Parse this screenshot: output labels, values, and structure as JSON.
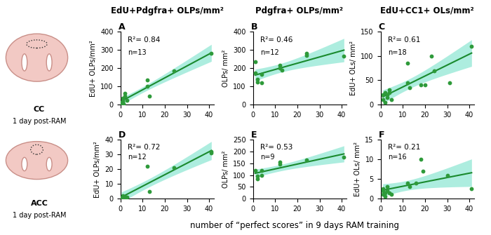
{
  "column_titles": [
    "EdU+Pdgfra+ OLPs/mm²",
    "Pdgfra+ OLPs/mm²",
    "EdU+CC1+ OLs/mm²"
  ],
  "row_labels": [
    [
      "CC",
      "1 day post-RAM"
    ],
    [
      "ACC",
      "1 day post-RAM"
    ]
  ],
  "xlabel": "number of “perfect scores” in 9 days RAM training",
  "chart_data": [
    {
      "type": "scatter",
      "title": "A",
      "ylabel": "EdU+ OLPs/mm²",
      "xlim": [
        0,
        42
      ],
      "xticks": [
        0,
        10,
        20,
        30,
        40
      ],
      "ylim": [
        0,
        400
      ],
      "yticks": [
        0,
        100,
        200,
        300,
        400
      ],
      "annotations": [
        "R²= 0.84",
        "n=13"
      ],
      "series": [
        {
          "color": "#2e9a3a",
          "x": [
            0.5,
            1,
            1,
            1.5,
            2,
            2,
            3,
            12,
            12,
            13,
            24,
            41,
            0.5
          ],
          "values": [
            10,
            20,
            35,
            5,
            45,
            60,
            25,
            100,
            135,
            45,
            185,
            280,
            0
          ]
        }
      ]
    },
    {
      "type": "scatter",
      "title": "B",
      "ylabel": "OLPs/ mm²",
      "xlim": [
        0,
        42
      ],
      "xticks": [
        0,
        10,
        20,
        30,
        40
      ],
      "ylim": [
        0,
        400
      ],
      "yticks": [
        0,
        100,
        200,
        300,
        400
      ],
      "annotations": [
        "R²= 0.46",
        "n=12"
      ],
      "series": [
        {
          "color": "#2e9a3a",
          "x": [
            1,
            1,
            2,
            2,
            4,
            4,
            12,
            12,
            13,
            24,
            24,
            41
          ],
          "values": [
            235,
            175,
            140,
            125,
            120,
            165,
            200,
            215,
            190,
            280,
            270,
            265
          ]
        }
      ]
    },
    {
      "type": "scatter",
      "title": "C",
      "ylabel": "EdU+ OLs/ mm²",
      "xlim": [
        0,
        42
      ],
      "xticks": [
        0,
        10,
        20,
        30,
        40
      ],
      "ylim": [
        0,
        150
      ],
      "yticks": [
        0,
        50,
        100,
        150
      ],
      "annotations": [
        "R²= 0.61",
        "n=18"
      ],
      "series": [
        {
          "color": "#2e9a3a",
          "x": [
            1,
            1,
            2,
            2,
            3,
            3,
            4,
            4,
            5,
            12,
            12,
            13,
            18,
            20,
            23,
            24,
            31,
            41
          ],
          "values": [
            10,
            20,
            5,
            25,
            15,
            20,
            30,
            25,
            10,
            85,
            45,
            35,
            40,
            40,
            100,
            70,
            45,
            120
          ]
        }
      ]
    },
    {
      "type": "scatter",
      "title": "D",
      "ylabel": "EdU+ OLPs/mm²",
      "xlim": [
        0,
        42
      ],
      "xticks": [
        0,
        10,
        20,
        30,
        40
      ],
      "ylim": [
        0,
        40
      ],
      "yticks": [
        0,
        10,
        20,
        30,
        40
      ],
      "annotations": [
        "R²= 0.72",
        "n=12"
      ],
      "series": [
        {
          "color": "#2e9a3a",
          "x": [
            0.5,
            1,
            1,
            1.5,
            2,
            2,
            3,
            12,
            13,
            24,
            41,
            41
          ],
          "values": [
            0.5,
            1,
            2,
            0,
            1.5,
            1,
            1,
            22,
            5,
            21,
            32,
            31
          ]
        }
      ]
    },
    {
      "type": "scatter",
      "title": "E",
      "ylabel": "OLPs/ mm²",
      "xlim": [
        0,
        42
      ],
      "xticks": [
        0,
        10,
        20,
        30,
        40
      ],
      "ylim": [
        0,
        250
      ],
      "yticks": [
        0,
        50,
        100,
        150,
        200,
        250
      ],
      "annotations": [
        "R²= 0.53",
        "n=9"
      ],
      "series": [
        {
          "color": "#2e9a3a",
          "x": [
            1,
            2,
            2,
            4,
            4,
            12,
            12,
            24,
            41
          ],
          "values": [
            120,
            95,
            85,
            120,
            100,
            155,
            145,
            165,
            175
          ]
        }
      ]
    },
    {
      "type": "scatter",
      "title": "F",
      "ylabel": "EdU+ OLs/ mm²",
      "xlim": [
        0,
        42
      ],
      "xticks": [
        0,
        10,
        20,
        30,
        40
      ],
      "ylim": [
        0,
        15
      ],
      "yticks": [
        0,
        5,
        10,
        15
      ],
      "annotations": [
        "R²= 0.21",
        "n=16"
      ],
      "series": [
        {
          "color": "#2e9a3a",
          "x": [
            1,
            1,
            1,
            2,
            2,
            3,
            3,
            4,
            5,
            12,
            13,
            16,
            18,
            19,
            30,
            41
          ],
          "values": [
            1,
            2,
            2.5,
            1.5,
            0.5,
            2,
            3,
            1.5,
            1,
            4,
            3,
            4,
            10,
            7,
            6,
            2.5
          ]
        }
      ]
    }
  ]
}
